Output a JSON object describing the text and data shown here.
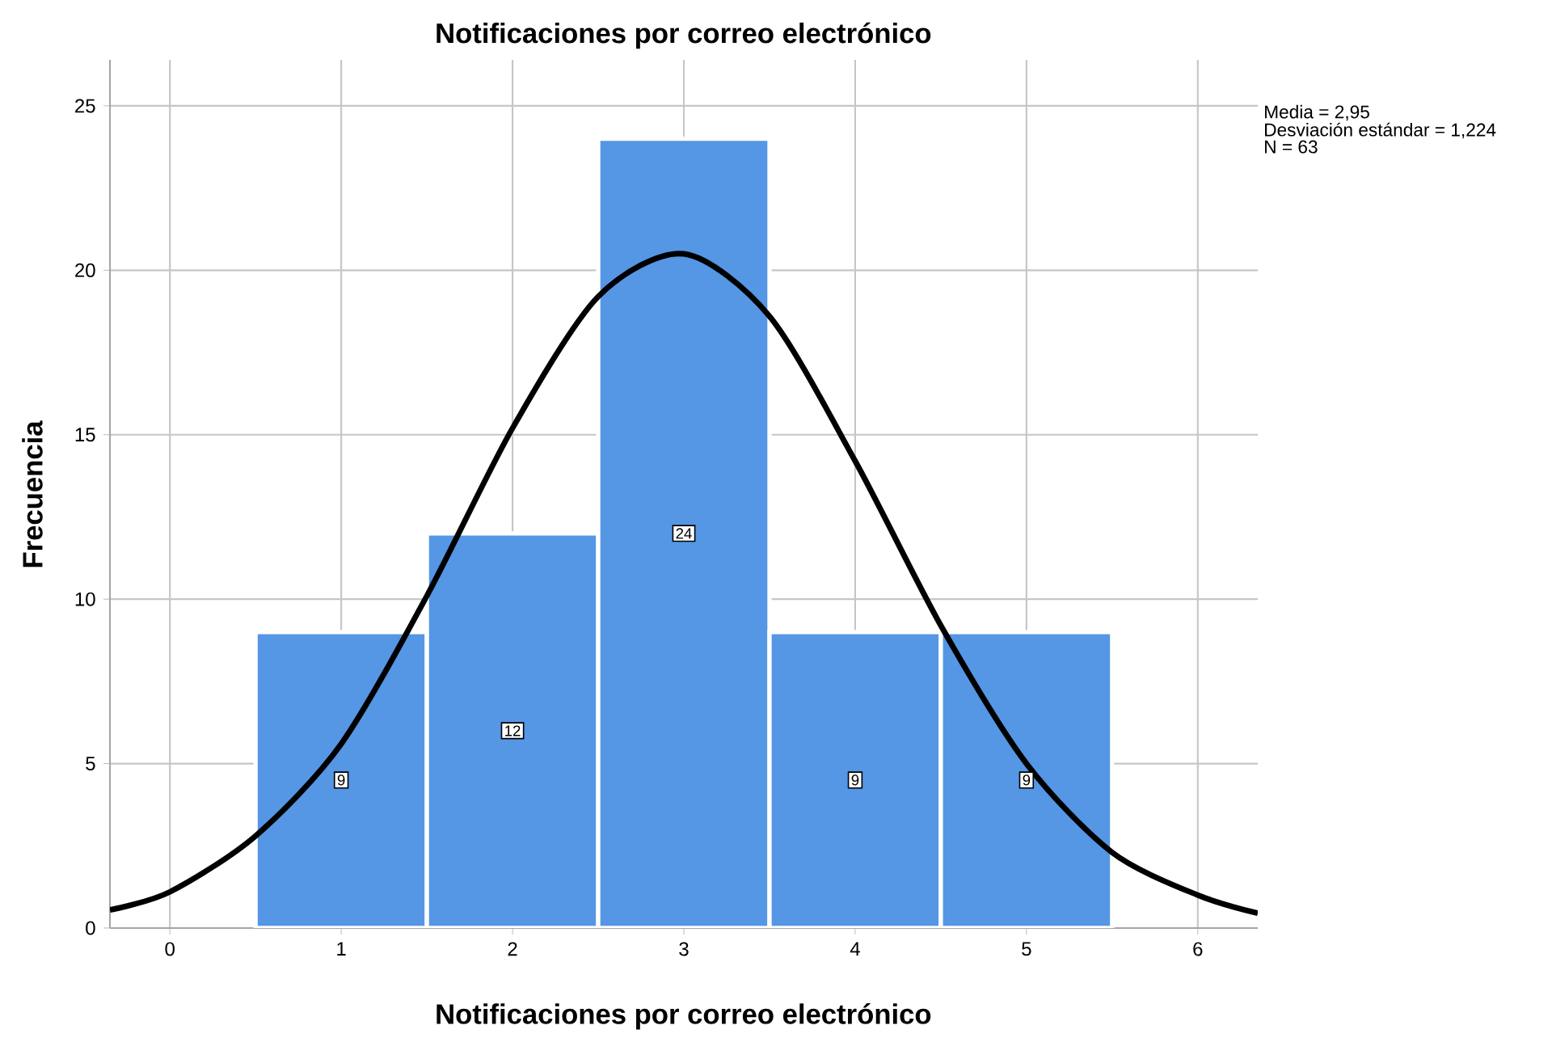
{
  "chart_data": {
    "type": "histogram",
    "title": "Notificaciones por correo electrónico",
    "xlabel": "Notificaciones por correo electrónico",
    "ylabel": "Frecuencia",
    "annotations": [
      "Media = 2,95",
      "Desviación estándar = 1,224",
      "N = 63"
    ],
    "series": [
      {
        "color": "#5596e5",
        "bins": [
          0.5,
          1.5,
          2.5,
          3.5,
          4.5,
          5.5
        ],
        "values": [
          9,
          12,
          24,
          9,
          9
        ],
        "value_labels": [
          "9",
          "12",
          "24",
          "9",
          "9"
        ]
      },
      {
        "type": "line",
        "color": "#000000",
        "x": [
          -0.35,
          0,
          0.5,
          1,
          1.5,
          2,
          2.5,
          3,
          3.5,
          4,
          4.5,
          5,
          5.5,
          6,
          6.35
        ],
        "values": [
          0.55,
          1.1,
          2.8,
          5.6,
          10.1,
          15.2,
          19.2,
          20.5,
          18.6,
          14.2,
          9.2,
          5.0,
          2.3,
          1.0,
          0.45
        ]
      }
    ],
    "grid": true,
    "xlim": [
      -0.35,
      6.35
    ],
    "ylim": [
      0,
      26.4
    ],
    "xticks": [
      0,
      1,
      2,
      3,
      4,
      5,
      6
    ],
    "yticks": [
      0,
      5,
      10,
      15,
      20,
      25
    ]
  }
}
